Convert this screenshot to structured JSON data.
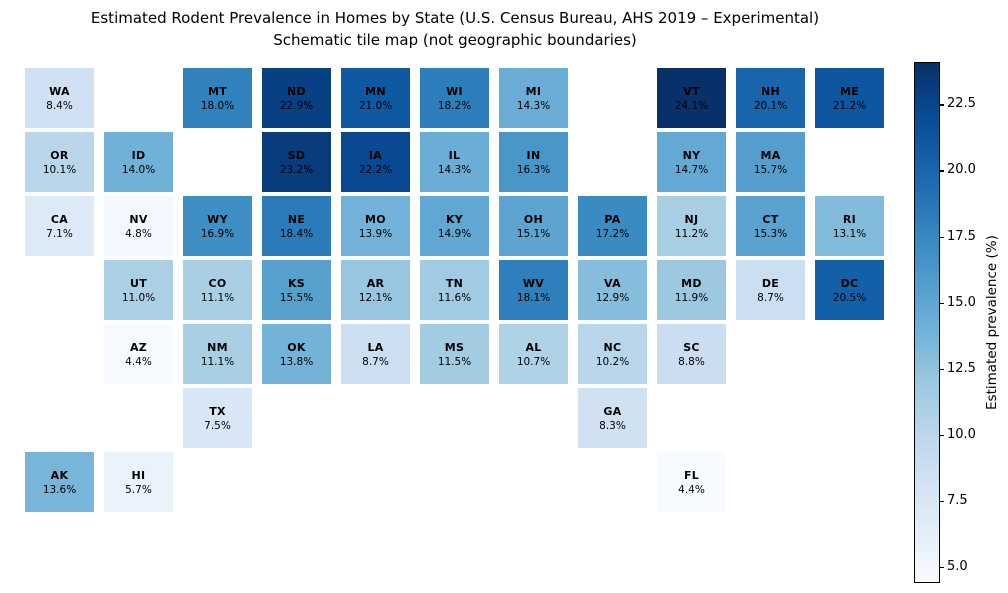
{
  "title": {
    "line1": "Estimated Rodent Prevalence in Homes by State (U.S. Census Bureau, AHS 2019 – Experimental)",
    "line2": "Schematic tile map (not geographic boundaries)"
  },
  "chart_data": {
    "type": "heatmap",
    "subtype": "schematic-tile-grid-map",
    "title": "Estimated Rodent Prevalence in Homes by State (U.S. Census Bureau, AHS 2019 – Experimental)",
    "subtitle": "Schematic tile map (not geographic boundaries)",
    "value_unit": "%",
    "colormap": {
      "name": "Blues",
      "stops": [
        "#f7fbff",
        "#deebf7",
        "#c6dbef",
        "#9ecae1",
        "#6baed6",
        "#4292c6",
        "#2171b5",
        "#08519c",
        "#08306b"
      ]
    },
    "vmin": 4.4,
    "vmax": 24.1,
    "colorbar": {
      "label": "Estimated prevalence (%)",
      "ticks": [
        5.0,
        7.5,
        10.0,
        12.5,
        15.0,
        17.5,
        20.0,
        22.5
      ]
    },
    "grid": {
      "rows": 7,
      "cols": 11
    },
    "tiles": [
      {
        "state": "WA",
        "row": 0,
        "col": 0,
        "value": 8.4
      },
      {
        "state": "MT",
        "row": 0,
        "col": 2,
        "value": 18.0
      },
      {
        "state": "ND",
        "row": 0,
        "col": 3,
        "value": 22.9
      },
      {
        "state": "MN",
        "row": 0,
        "col": 4,
        "value": 21.0
      },
      {
        "state": "WI",
        "row": 0,
        "col": 5,
        "value": 18.2
      },
      {
        "state": "MI",
        "row": 0,
        "col": 6,
        "value": 14.3
      },
      {
        "state": "VT",
        "row": 0,
        "col": 8,
        "value": 24.1
      },
      {
        "state": "NH",
        "row": 0,
        "col": 9,
        "value": 20.1
      },
      {
        "state": "ME",
        "row": 0,
        "col": 10,
        "value": 21.2
      },
      {
        "state": "OR",
        "row": 1,
        "col": 0,
        "value": 10.1
      },
      {
        "state": "ID",
        "row": 1,
        "col": 1,
        "value": 14.0
      },
      {
        "state": "SD",
        "row": 1,
        "col": 3,
        "value": 23.2
      },
      {
        "state": "IA",
        "row": 1,
        "col": 4,
        "value": 22.2
      },
      {
        "state": "IL",
        "row": 1,
        "col": 5,
        "value": 14.3
      },
      {
        "state": "IN",
        "row": 1,
        "col": 6,
        "value": 16.3
      },
      {
        "state": "NY",
        "row": 1,
        "col": 8,
        "value": 14.7
      },
      {
        "state": "MA",
        "row": 1,
        "col": 9,
        "value": 15.7
      },
      {
        "state": "CA",
        "row": 2,
        "col": 0,
        "value": 7.1
      },
      {
        "state": "NV",
        "row": 2,
        "col": 1,
        "value": 4.8
      },
      {
        "state": "WY",
        "row": 2,
        "col": 2,
        "value": 16.9
      },
      {
        "state": "NE",
        "row": 2,
        "col": 3,
        "value": 18.4
      },
      {
        "state": "MO",
        "row": 2,
        "col": 4,
        "value": 13.9
      },
      {
        "state": "KY",
        "row": 2,
        "col": 5,
        "value": 14.9
      },
      {
        "state": "OH",
        "row": 2,
        "col": 6,
        "value": 15.1
      },
      {
        "state": "PA",
        "row": 2,
        "col": 7,
        "value": 17.2
      },
      {
        "state": "NJ",
        "row": 2,
        "col": 8,
        "value": 11.2
      },
      {
        "state": "CT",
        "row": 2,
        "col": 9,
        "value": 15.3
      },
      {
        "state": "RI",
        "row": 2,
        "col": 10,
        "value": 13.1
      },
      {
        "state": "UT",
        "row": 3,
        "col": 1,
        "value": 11.0
      },
      {
        "state": "CO",
        "row": 3,
        "col": 2,
        "value": 11.1
      },
      {
        "state": "KS",
        "row": 3,
        "col": 3,
        "value": 15.5
      },
      {
        "state": "AR",
        "row": 3,
        "col": 4,
        "value": 12.1
      },
      {
        "state": "TN",
        "row": 3,
        "col": 5,
        "value": 11.6
      },
      {
        "state": "WV",
        "row": 3,
        "col": 6,
        "value": 18.1
      },
      {
        "state": "VA",
        "row": 3,
        "col": 7,
        "value": 12.9
      },
      {
        "state": "MD",
        "row": 3,
        "col": 8,
        "value": 11.9
      },
      {
        "state": "DE",
        "row": 3,
        "col": 9,
        "value": 8.7
      },
      {
        "state": "DC",
        "row": 3,
        "col": 10,
        "value": 20.5
      },
      {
        "state": "AZ",
        "row": 4,
        "col": 1,
        "value": 4.4
      },
      {
        "state": "NM",
        "row": 4,
        "col": 2,
        "value": 11.1
      },
      {
        "state": "OK",
        "row": 4,
        "col": 3,
        "value": 13.8
      },
      {
        "state": "LA",
        "row": 4,
        "col": 4,
        "value": 8.7
      },
      {
        "state": "MS",
        "row": 4,
        "col": 5,
        "value": 11.5
      },
      {
        "state": "AL",
        "row": 4,
        "col": 6,
        "value": 10.7
      },
      {
        "state": "NC",
        "row": 4,
        "col": 7,
        "value": 10.2
      },
      {
        "state": "SC",
        "row": 4,
        "col": 8,
        "value": 8.8
      },
      {
        "state": "TX",
        "row": 5,
        "col": 2,
        "value": 7.5
      },
      {
        "state": "GA",
        "row": 5,
        "col": 7,
        "value": 8.3
      },
      {
        "state": "AK",
        "row": 6,
        "col": 0,
        "value": 13.6
      },
      {
        "state": "HI",
        "row": 6,
        "col": 1,
        "value": 5.7
      },
      {
        "state": "FL",
        "row": 6,
        "col": 8,
        "value": 4.4
      }
    ]
  }
}
